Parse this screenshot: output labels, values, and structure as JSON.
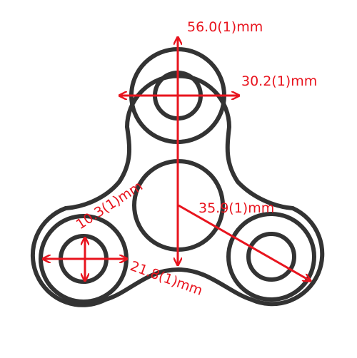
{
  "colors": {
    "outline": "#333333",
    "dimension": "#e8141e",
    "background": "#ffffff"
  },
  "dimensions": {
    "overall_length": "56.0(1)mm",
    "outer_ring_diameter": "30.2(1)mm",
    "bearing_bore": "10.3(1)mm",
    "center_to_lobe": "35.9(1)mm",
    "lobe_ring_diameter": "21.8(1)mm"
  }
}
